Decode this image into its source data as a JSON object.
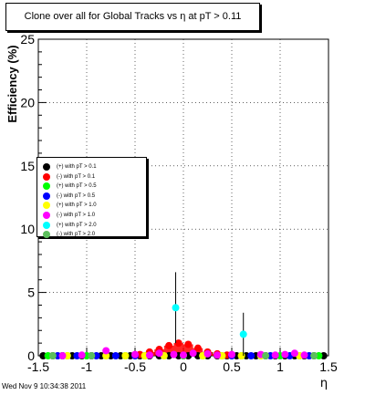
{
  "title": "Clone  over all for Global Tracks vs η at pT > 0.11",
  "timestamp": "Wed Nov  9 10:34:38 2011",
  "chart_data": {
    "type": "scatter",
    "xlabel": "η",
    "ylabel": "Efficiency (%)",
    "xlim": [
      -1.5,
      1.5
    ],
    "ylim": [
      0,
      25
    ],
    "xticks": [
      -1.5,
      -1,
      -0.5,
      0,
      0.5,
      1,
      1.5
    ],
    "xtick_labels": [
      "-1.5",
      "-1",
      "-0.5",
      "0",
      "0.5",
      "1",
      "1.5"
    ],
    "yticks": [
      0,
      5,
      10,
      15,
      20,
      25
    ],
    "ytick_labels": [
      "0",
      "5",
      "10",
      "15",
      "20",
      "25"
    ],
    "grid": true,
    "legend_position": "left-middle",
    "series": [
      {
        "name": "(+) with pT > 0.1",
        "color": "#000000",
        "x": [
          -1.45,
          -1.35,
          -1.25,
          -1.15,
          -1.05,
          -0.95,
          -0.85,
          -0.75,
          -0.65,
          -0.55,
          -0.45,
          -0.35,
          -0.25,
          -0.15,
          -0.05,
          0.05,
          0.15,
          0.25,
          0.35,
          0.45,
          0.55,
          0.65,
          0.75,
          0.85,
          0.95,
          1.05,
          1.15,
          1.25,
          1.35,
          1.45
        ],
        "y": [
          0,
          0,
          0,
          0,
          0,
          0,
          0,
          0,
          0,
          0,
          0,
          0,
          0,
          0,
          0,
          0,
          0,
          0,
          0,
          0,
          0,
          0,
          0,
          0,
          0,
          0,
          0,
          0,
          0,
          0
        ]
      },
      {
        "name": "(-) with pT > 0.1",
        "color": "#ff0000",
        "x": [
          -0.45,
          -0.35,
          -0.25,
          -0.15,
          -0.05,
          0.05,
          0.15,
          0.25,
          0.35,
          0.45
        ],
        "y": [
          0.1,
          0.3,
          0.5,
          0.8,
          1.0,
          0.9,
          0.6,
          0.3,
          0.15,
          0.05
        ]
      },
      {
        "name": "(+) with pT > 0.5",
        "color": "#00ff00",
        "x": [
          -1.4,
          -1.2,
          -1.0,
          -0.8,
          -0.6,
          -0.4,
          -0.2,
          0.0,
          0.2,
          0.4,
          0.6,
          0.8,
          1.0,
          1.2,
          1.4
        ],
        "y": [
          0,
          0,
          0,
          0,
          0,
          0,
          0,
          0,
          0,
          0,
          0,
          0,
          0,
          0,
          0
        ]
      },
      {
        "name": "(-) with pT > 0.5",
        "color": "#0000ff",
        "x": [
          -1.3,
          -1.1,
          -0.9,
          -0.7,
          -0.5,
          0.5,
          0.7,
          0.9,
          1.1,
          1.3
        ],
        "y": [
          0,
          0,
          0,
          0,
          0,
          0,
          0,
          0,
          0,
          0
        ]
      },
      {
        "name": "(+) with pT > 1.0",
        "color": "#ffff00",
        "x": [
          -1.2,
          -0.8,
          -0.6,
          -0.4,
          -0.2,
          0.2,
          0.4,
          0.6,
          0.8,
          1.2
        ],
        "y": [
          0,
          0,
          0,
          0,
          0,
          0,
          0,
          0,
          0,
          0
        ]
      },
      {
        "name": "(-) with pT > 1.0",
        "color": "#ff00ff",
        "x": [
          -1.25,
          -1.05,
          -0.8,
          -0.5,
          -0.35,
          -0.25,
          -0.1,
          0.0,
          0.1,
          0.25,
          0.35,
          0.5,
          0.8,
          0.95,
          1.05,
          1.15,
          1.25
        ],
        "y": [
          0,
          0.05,
          0.4,
          0.1,
          0.05,
          0.2,
          0.1,
          0.05,
          0.2,
          0.15,
          0.05,
          0.1,
          0.1,
          0.05,
          0.1,
          0.2,
          0.05
        ]
      },
      {
        "name": "(+) with pT > 2.0",
        "color": "#00ffff",
        "x": [
          -0.08,
          0.62
        ],
        "y": [
          3.8,
          1.7
        ],
        "err": [
          2.8,
          1.7
        ]
      },
      {
        "name": "(-) with pT > 2.0",
        "color": "#5cbf5c",
        "x": [
          -1.35,
          -0.95,
          0.85,
          1.35
        ],
        "y": [
          0,
          0,
          0,
          0
        ]
      }
    ]
  }
}
